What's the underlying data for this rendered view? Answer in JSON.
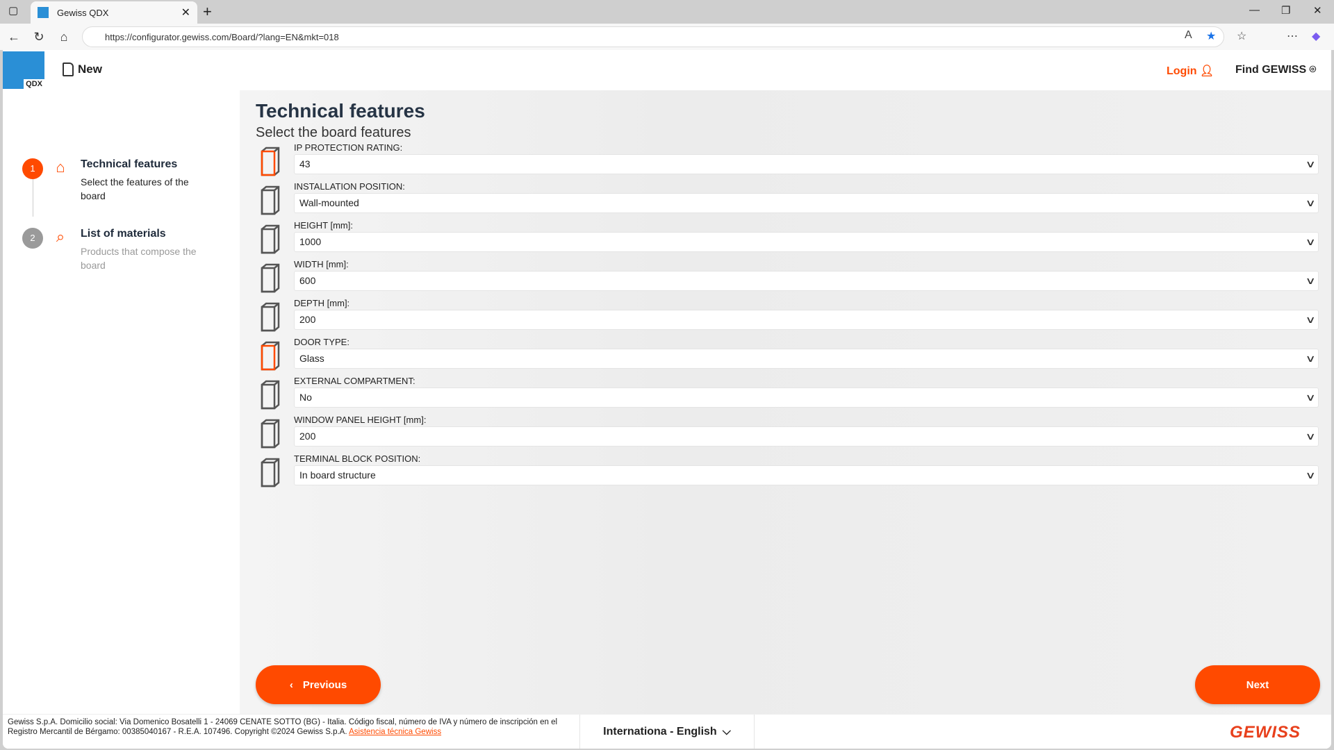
{
  "browser": {
    "tab_title": "Gewiss QDX",
    "url": "https://configurator.gewiss.com/Board/?lang=EN&mkt=018"
  },
  "header": {
    "logo": "QDX",
    "new_label": "New",
    "login_label": "Login",
    "find_label": "Find GEWISS"
  },
  "steps": [
    {
      "number": "1",
      "title": "Technical features",
      "subtitle": "Select the features of the board",
      "icon": "home-icon",
      "active": true
    },
    {
      "number": "2",
      "title": "List of materials",
      "subtitle": "Products that compose the board",
      "icon": "search-list-icon",
      "active": false
    }
  ],
  "main": {
    "title": "Technical features",
    "subtitle": "Select the board features",
    "fields": [
      {
        "label": "IP PROTECTION RATING:",
        "value": "43"
      },
      {
        "label": "INSTALLATION POSITION:",
        "value": "Wall-mounted"
      },
      {
        "label": "HEIGHT [mm]:",
        "value": "1000"
      },
      {
        "label": "WIDTH [mm]:",
        "value": "600"
      },
      {
        "label": "DEPTH [mm]:",
        "value": "200"
      },
      {
        "label": "DOOR TYPE:",
        "value": "Glass"
      },
      {
        "label": "EXTERNAL COMPARTMENT:",
        "value": "No"
      },
      {
        "label": "WINDOW PANEL HEIGHT [mm]:",
        "value": "200"
      },
      {
        "label": "TERMINAL BLOCK POSITION:",
        "value": "In board structure"
      }
    ],
    "previous_label": "Previous",
    "next_label": "Next"
  },
  "footer": {
    "legal": "Gewiss S.p.A. Domicilio social: Via Domenico Bosatelli 1 - 24069 CENATE SOTTO (BG) - Italia. Código fiscal, número de IVA y número de inscripción en el Registro Mercantil de Bérgamo: 00385040167 - R.E.A. 107496. Copyright ©2024 Gewiss S.p.A.",
    "support_link": "Asistencia técnica Gewiss",
    "language": "Internationa - English",
    "brand": "GEWISS"
  },
  "colors": {
    "accent": "#ff4a00",
    "brand_blue": "#2a8fd6"
  }
}
